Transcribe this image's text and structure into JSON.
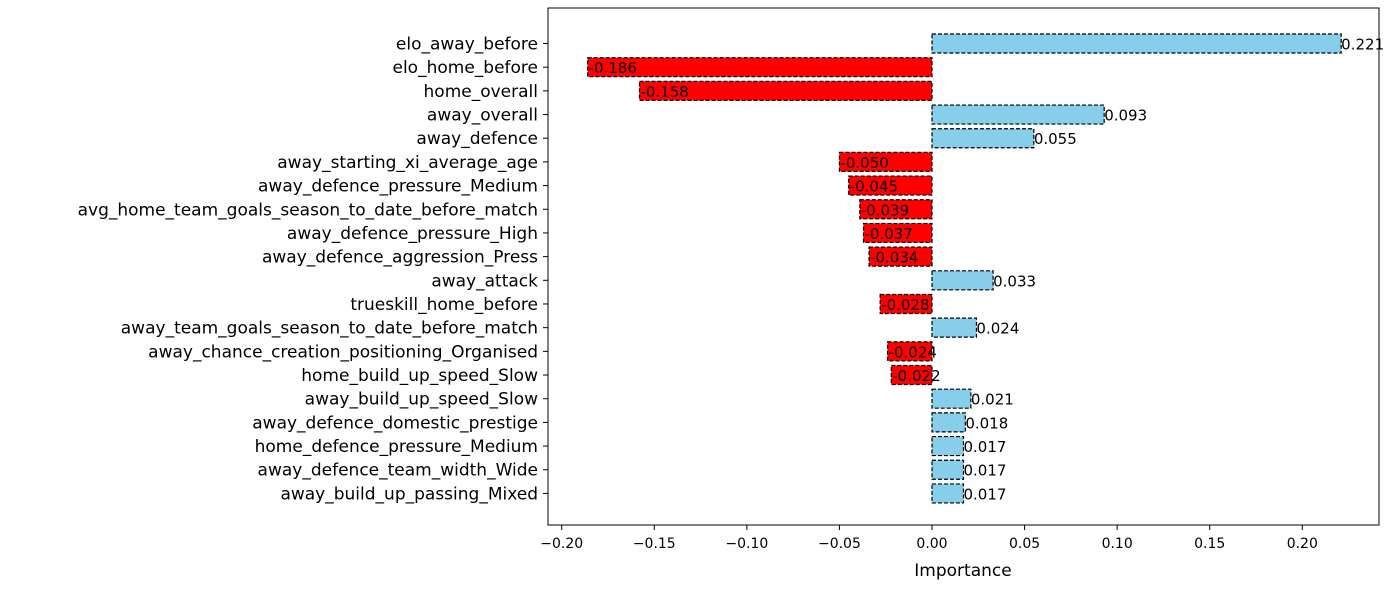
{
  "chart_data": {
    "type": "bar",
    "orientation": "horizontal",
    "title": "",
    "xlabel": "Importance",
    "ylabel": "",
    "xlim": [
      -0.2,
      0.22
    ],
    "xticks": [
      -0.2,
      -0.15,
      -0.1,
      -0.05,
      0.0,
      0.05,
      0.1,
      0.15,
      0.2
    ],
    "xtick_labels": [
      "−0.20",
      "−0.15",
      "−0.10",
      "−0.05",
      "0.00",
      "0.05",
      "0.10",
      "0.15",
      "0.20"
    ],
    "grid": false,
    "colors": {
      "positive": "#87CEEB",
      "negative": "#FF0000",
      "edge": "#000000"
    },
    "categories": [
      "elo_away_before",
      "elo_home_before",
      "home_overall",
      "away_overall",
      "away_defence",
      "away_starting_xi_average_age",
      "away_defence_pressure_Medium",
      "avg_home_team_goals_season_to_date_before_match",
      "away_defence_pressure_High",
      "away_defence_aggression_Press",
      "away_attack",
      "trueskill_home_before",
      "away_team_goals_season_to_date_before_match",
      "away_chance_creation_positioning_Organised",
      "home_build_up_speed_Slow",
      "away_build_up_speed_Slow",
      "away_defence_domestic_prestige",
      "home_defence_pressure_Medium",
      "away_defence_team_width_Wide",
      "away_build_up_passing_Mixed"
    ],
    "values": [
      0.221,
      -0.186,
      -0.158,
      0.093,
      0.055,
      -0.05,
      -0.045,
      -0.039,
      -0.037,
      -0.034,
      0.033,
      -0.028,
      0.024,
      -0.024,
      -0.022,
      0.021,
      0.018,
      0.017,
      0.017,
      0.017
    ],
    "value_labels": [
      "0.221",
      "-0.186",
      "-0.158",
      "0.093",
      "0.055",
      "-0.050",
      "-0.045",
      "-0.039",
      "-0.037",
      "-0.034",
      "0.033",
      "-0.028",
      "0.024",
      "-0.024",
      "-0.022",
      "0.021",
      "0.018",
      "0.017",
      "0.017",
      "0.017"
    ]
  }
}
